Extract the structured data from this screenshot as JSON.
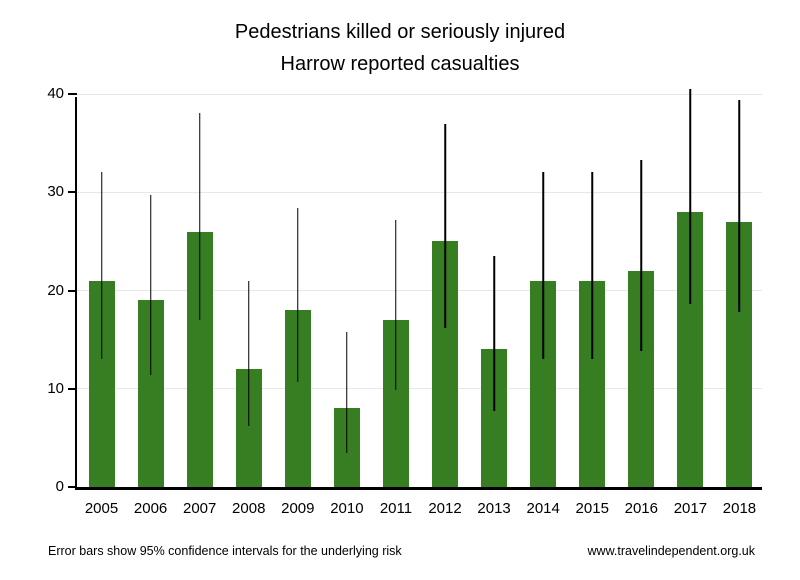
{
  "title": {
    "line1": "Pedestrians killed or seriously injured",
    "line2": "Harrow reported casualties"
  },
  "footer": {
    "note": "Error bars show 95% confidence intervals for the underlying risk",
    "website": "www.travelindependent.org.uk"
  },
  "chart_data": {
    "type": "bar",
    "title": "Pedestrians killed or seriously injured — Harrow reported casualties",
    "categories": [
      "2005",
      "2006",
      "2007",
      "2008",
      "2009",
      "2010",
      "2011",
      "2012",
      "2013",
      "2014",
      "2015",
      "2016",
      "2017",
      "2018"
    ],
    "values": [
      21,
      19,
      26,
      12,
      18,
      8,
      17,
      25,
      14,
      21,
      21,
      22,
      28,
      27
    ],
    "error_low": [
      13.0,
      11.4,
      17.0,
      6.2,
      10.7,
      3.5,
      9.9,
      16.2,
      7.7,
      13.0,
      13.0,
      13.8,
      18.6,
      17.8
    ],
    "error_high": [
      32.1,
      29.7,
      38.1,
      21.0,
      28.4,
      15.8,
      27.2,
      36.9,
      23.5,
      32.1,
      32.1,
      33.3,
      40.5,
      39.4
    ],
    "xlabel": "",
    "ylabel": "",
    "ylim": [
      0,
      40
    ],
    "yticks": [
      0,
      10,
      20,
      30,
      40
    ],
    "grid": "horizontal",
    "legend": "none",
    "bar_color": "#377d22",
    "error_bar_color": "#000000",
    "grid_color": "#e7e7e7",
    "annotation": "Error bars show 95% confidence intervals for the underlying risk"
  }
}
